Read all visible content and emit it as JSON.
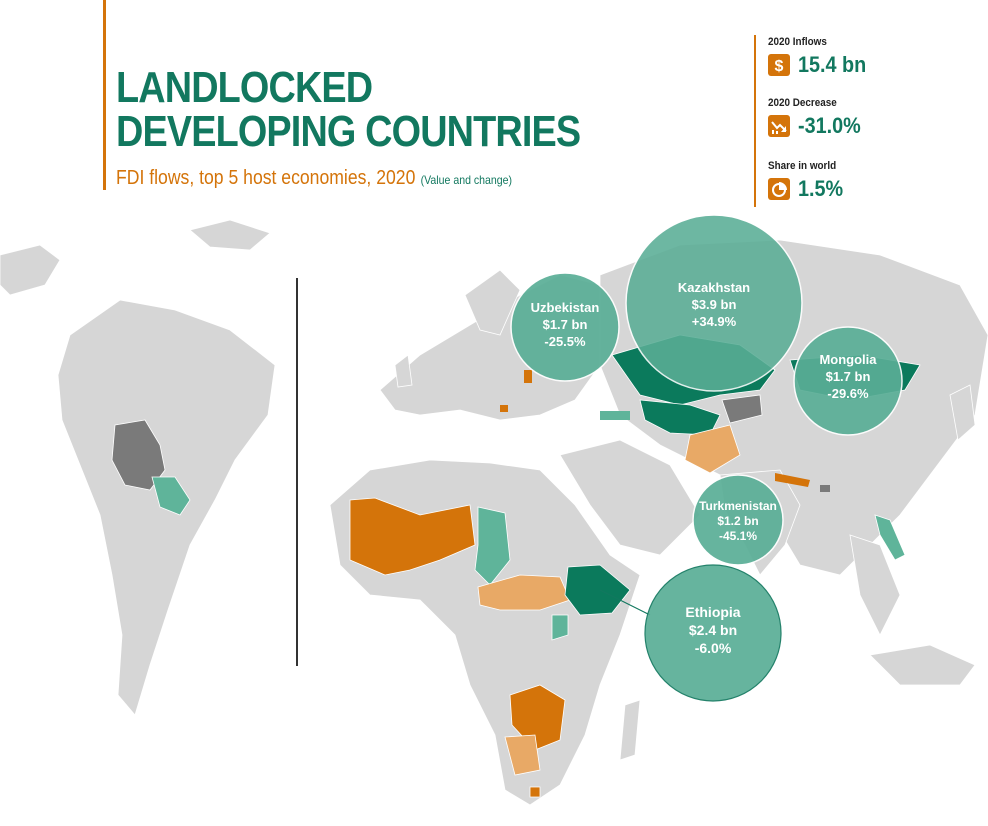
{
  "header": {
    "title_line1": "LANDLOCKED",
    "title_line2": "DEVELOPING COUNTRIES",
    "subtitle": "FDI flows, top 5 host economies, 2020",
    "subtitle_note": "(Value and change)"
  },
  "stats": [
    {
      "label": "2020 Inflows",
      "value": "15.4 bn",
      "icon": "dollar-icon"
    },
    {
      "label": "2020 Decrease",
      "value": "-31.0%",
      "icon": "trend-down-icon"
    },
    {
      "label": "Share in world",
      "value": "1.5%",
      "icon": "pie-chart-icon"
    }
  ],
  "bubbles": [
    {
      "name": "Uzbekistan",
      "value": "$1.7 bn",
      "change": "-25.5%"
    },
    {
      "name": "Kazakhstan",
      "value": "$3.9 bn",
      "change": "+34.9%"
    },
    {
      "name": "Mongolia",
      "value": "$1.7 bn",
      "change": "-29.6%"
    },
    {
      "name": "Turkmenistan",
      "value": "$1.2 bn",
      "change": "-45.1%"
    },
    {
      "name": "Ethiopia",
      "value": "$2.4 bn",
      "change": "-6.0%"
    }
  ],
  "colors": {
    "title_green": "#12785f",
    "accent_orange": "#d4740a",
    "dark_green": "#0b7a5c",
    "medium_green": "#5fb49a",
    "light_orange": "#e8a966",
    "bubble_fill": "#5aae96",
    "land_grey": "#d6d6d6",
    "dark_grey": "#7a7a7a"
  }
}
